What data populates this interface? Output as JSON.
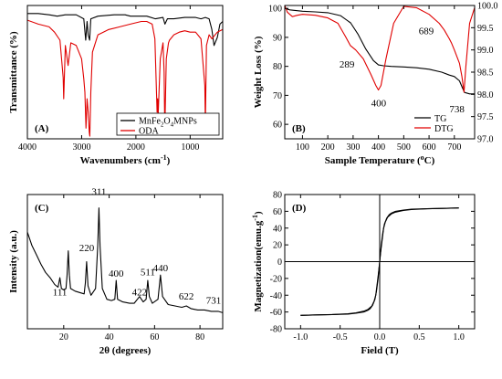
{
  "chart_data": [
    {
      "id": "A",
      "type": "line",
      "panel_label": "(A)",
      "xlabel": "Wavenumbers (cm",
      "xlabel_sup": "-1",
      "xlabel_tail": ")",
      "ylabel": "Transmittance (%)",
      "xlim": [
        4000,
        400
      ],
      "x_ticks": [
        4000,
        3000,
        2000,
        1000
      ],
      "x_tick_labels": [
        "4000",
        "3000",
        "2000",
        "1000"
      ],
      "ylim": [
        0,
        100
      ],
      "grid": false,
      "legend_position": "bottom-right",
      "legend_entries": [
        {
          "text": "MnFe",
          "sub1": "2",
          "mid": "O",
          "sub2": "4",
          "tail": "MNPs"
        },
        {
          "text": "ODA",
          "sub1": "",
          "mid": "",
          "sub2": "",
          "tail": ""
        }
      ],
      "series": [
        {
          "color": "#000000",
          "x": [
            4000,
            3800,
            3600,
            3450,
            3300,
            3100,
            2960,
            2925,
            2900,
            2880,
            2853,
            2830,
            2700,
            2400,
            2200,
            2100,
            2000,
            1800,
            1640,
            1500,
            1465,
            1420,
            1300,
            1100,
            1000,
            900,
            800,
            720,
            650,
            600,
            560,
            500,
            450,
            400
          ],
          "y": [
            94,
            94,
            93,
            92,
            93,
            93,
            90,
            74,
            88,
            78,
            74,
            90,
            92,
            93,
            93,
            92,
            92,
            92,
            90,
            91,
            86,
            90,
            90,
            91,
            91,
            91,
            90,
            91,
            90,
            82,
            70,
            76,
            86,
            88
          ]
        },
        {
          "color": "#e00000",
          "x": [
            4000,
            3800,
            3600,
            3500,
            3400,
            3340,
            3330,
            3300,
            3250,
            3200,
            3100,
            3000,
            2960,
            2940,
            2920,
            2900,
            2880,
            2860,
            2850,
            2830,
            2800,
            2700,
            2600,
            2500,
            2300,
            2100,
            1900,
            1800,
            1700,
            1650,
            1610,
            1600,
            1590,
            1550,
            1500,
            1480,
            1470,
            1465,
            1460,
            1440,
            1400,
            1380,
            1300,
            1200,
            1100,
            1000,
            900,
            800,
            730,
            720,
            710,
            700,
            650,
            600,
            500,
            400
          ],
          "y": [
            89,
            86,
            84,
            80,
            74,
            46,
            30,
            70,
            55,
            72,
            70,
            60,
            45,
            35,
            8,
            30,
            20,
            5,
            2,
            35,
            65,
            78,
            80,
            82,
            84,
            86,
            88,
            88,
            86,
            75,
            20,
            30,
            18,
            60,
            72,
            50,
            15,
            3,
            20,
            60,
            72,
            74,
            78,
            80,
            81,
            80,
            80,
            75,
            40,
            10,
            40,
            70,
            78,
            75,
            80,
            82
          ]
        }
      ]
    },
    {
      "id": "B",
      "type": "line",
      "panel_label": "(B)",
      "xlabel": "Sample Temperature (",
      "xlabel_sup": "o",
      "xlabel_tail": "C)",
      "ylabel": "Weight Loss (%)",
      "xlim": [
        30,
        780
      ],
      "x_ticks": [
        100,
        200,
        300,
        400,
        500,
        600,
        700
      ],
      "ylim": [
        55,
        101
      ],
      "y_ticks": [
        60,
        70,
        80,
        90,
        100
      ],
      "y2lim": [
        97.0,
        100.0
      ],
      "y2_ticks": [
        97.0,
        97.5,
        98.0,
        98.5,
        99.0,
        99.5,
        100.0
      ],
      "y2_tick_labels": [
        "97.0",
        "97.5",
        "98.0",
        "98.5",
        "99.0",
        "99.5",
        "100.0"
      ],
      "grid": false,
      "legend_position": "bottom-right",
      "legend_entries": [
        "TG",
        "DTG"
      ],
      "annotations": [
        "289",
        "400",
        "689",
        "738"
      ],
      "series": [
        {
          "name": "TG",
          "axis": "left",
          "color": "#000000",
          "x": [
            30,
            50,
            100,
            150,
            200,
            250,
            290,
            320,
            350,
            380,
            400,
            420,
            450,
            500,
            550,
            600,
            650,
            680,
            700,
            720,
            730,
            740,
            760,
            780
          ],
          "y": [
            100,
            99.5,
            99,
            98.8,
            98.5,
            97.5,
            95,
            91,
            86,
            82,
            80.5,
            80.2,
            80,
            79.8,
            79.5,
            79,
            78,
            77,
            76.5,
            75,
            73,
            71,
            70.5,
            70.5
          ]
        },
        {
          "name": "DTG",
          "axis": "right",
          "color": "#e00000",
          "x": [
            30,
            40,
            60,
            80,
            100,
            150,
            200,
            240,
            270,
            289,
            310,
            340,
            370,
            390,
            400,
            410,
            430,
            460,
            500,
            550,
            600,
            640,
            660,
            680,
            689,
            700,
            720,
            730,
            738,
            745,
            760,
            780
          ],
          "y": [
            100,
            99.85,
            99.75,
            99.78,
            99.8,
            99.78,
            99.72,
            99.6,
            99.3,
            99.1,
            99.0,
            98.8,
            98.45,
            98.2,
            98.1,
            98.2,
            98.8,
            99.6,
            99.98,
            99.95,
            99.8,
            99.6,
            99.45,
            99.25,
            99.15,
            99.0,
            98.7,
            98.4,
            98.05,
            98.6,
            99.6,
            99.95
          ]
        }
      ]
    },
    {
      "id": "C",
      "type": "line",
      "panel_label": "(C)",
      "xlabel": "2θ (degrees)",
      "ylabel": "Intensity (a.u.)",
      "xlim": [
        4,
        90
      ],
      "x_ticks": [
        20,
        40,
        60,
        80
      ],
      "ylim": [
        0,
        100
      ],
      "grid": false,
      "peak_labels": [
        {
          "text": "111",
          "x": 18.3,
          "y": 22
        },
        {
          "text": "220",
          "x": 30.1,
          "y": 55
        },
        {
          "text": "311",
          "x": 35.5,
          "y": 97
        },
        {
          "text": "400",
          "x": 43.1,
          "y": 36
        },
        {
          "text": "422",
          "x": 53.4,
          "y": 22
        },
        {
          "text": "511",
          "x": 57.0,
          "y": 37
        },
        {
          "text": "440",
          "x": 62.6,
          "y": 40
        },
        {
          "text": "622",
          "x": 74.0,
          "y": 19
        },
        {
          "text": "731",
          "x": 86.0,
          "y": 16
        }
      ],
      "series": [
        {
          "color": "#000000",
          "x": [
            4,
            6,
            8,
            10,
            12,
            14,
            16,
            17.5,
            18.3,
            19,
            20,
            21,
            21.5,
            22,
            22.5,
            23,
            25,
            27,
            29,
            29.5,
            30.1,
            30.7,
            32,
            34,
            35.0,
            35.5,
            36.0,
            37,
            39,
            41,
            42.5,
            43.1,
            43.7,
            46,
            49,
            51,
            53.4,
            55,
            56.3,
            57.0,
            57.7,
            59,
            61.5,
            62.6,
            63.5,
            66,
            69,
            72,
            74,
            76,
            79,
            82,
            85,
            88,
            90
          ],
          "y": [
            72,
            62,
            55,
            48,
            42,
            38,
            33,
            31,
            38,
            30,
            29,
            30,
            40,
            58,
            40,
            30,
            28,
            27,
            26,
            34,
            50,
            32,
            25,
            30,
            62,
            90,
            62,
            30,
            22,
            21,
            22,
            36,
            22,
            20,
            19,
            19,
            24,
            20,
            22,
            36,
            24,
            19,
            22,
            40,
            24,
            18,
            17,
            16,
            17,
            15,
            14,
            14,
            13,
            13,
            12
          ]
        }
      ]
    },
    {
      "id": "D",
      "type": "line",
      "panel_label": "(D)",
      "xlabel": "Field (T)",
      "ylabel": "Magnetization(emu.g",
      "ylabel_sup": "-1",
      "ylabel_tail": ")",
      "xlim": [
        -1.2,
        1.2
      ],
      "x_ticks": [
        -1.0,
        -0.5,
        0.0,
        0.5,
        1.0
      ],
      "x_tick_labels": [
        "-1.0",
        "-0.5",
        "0.0",
        "0.5",
        "1.0"
      ],
      "ylim": [
        -80,
        80
      ],
      "y_ticks": [
        -80,
        -60,
        -40,
        -20,
        0,
        20,
        40,
        60,
        80
      ],
      "grid": false,
      "series": [
        {
          "color": "#000000",
          "x": [
            -1.0,
            -0.8,
            -0.6,
            -0.4,
            -0.3,
            -0.2,
            -0.15,
            -0.1,
            -0.07,
            -0.05,
            -0.03,
            -0.01,
            0.0,
            0.01,
            0.02,
            0.04,
            0.06,
            0.09,
            0.12,
            0.15,
            0.2,
            0.3,
            0.4,
            0.6,
            0.8,
            1.0
          ],
          "y": [
            -64,
            -63.5,
            -63,
            -62,
            -61,
            -59,
            -57,
            -53,
            -47,
            -40,
            -25,
            -10,
            0,
            10,
            20,
            35,
            45,
            52,
            56,
            58,
            60,
            61.5,
            62.5,
            63,
            63.5,
            64
          ]
        },
        {
          "color": "#000000",
          "x": [
            1.0,
            0.8,
            0.6,
            0.4,
            0.3,
            0.2,
            0.15,
            0.1,
            0.07,
            0.05,
            0.03,
            0.01,
            0.0,
            -0.01,
            -0.02,
            -0.04,
            -0.06,
            -0.09,
            -0.12,
            -0.15,
            -0.2,
            -0.3,
            -0.4,
            -0.6,
            -0.8,
            -1.0
          ],
          "y": [
            64,
            63.5,
            63,
            62,
            61,
            59,
            57,
            53,
            47,
            40,
            25,
            10,
            0,
            -10,
            -20,
            -35,
            -45,
            -52,
            -56,
            -58,
            -60,
            -61.5,
            -62.5,
            -63,
            -63.5,
            -64
          ]
        }
      ]
    }
  ]
}
